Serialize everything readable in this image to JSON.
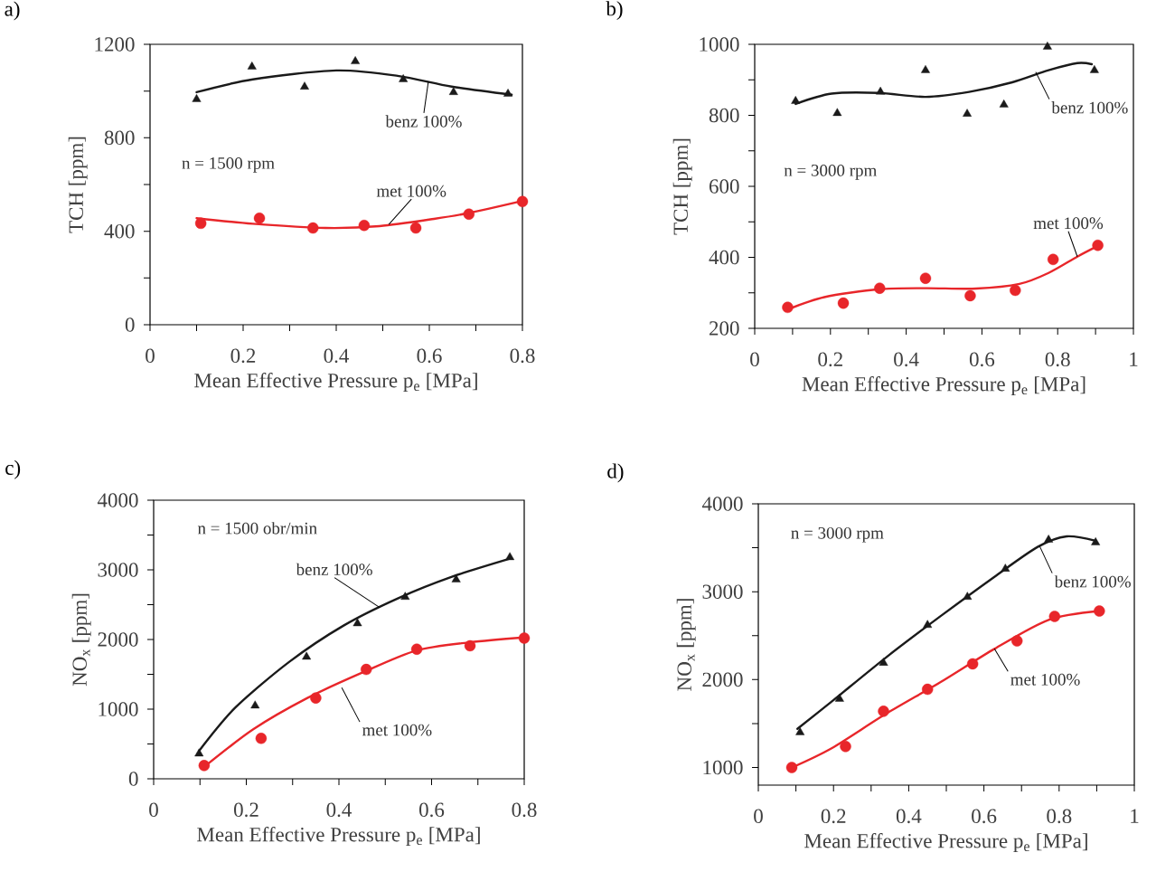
{
  "chart_data": [
    {
      "type": "scatter",
      "title": "a)",
      "xlabel": "Mean Effective Pressure p$_{e}$ [MPa]",
      "ylabel": "TCH [ppm]",
      "xlim": [
        0,
        0.8
      ],
      "ylim": [
        0,
        1200
      ],
      "xticks": [
        0,
        {
          "value": 0.1,
          "label": null
        },
        0.2,
        {
          "value": 0.3,
          "label": null
        },
        0.4,
        {
          "value": 0.5,
          "label": null
        },
        0.6,
        {
          "value": 0.7,
          "label": null
        },
        0.8
      ],
      "yticks": [
        0,
        {
          "value": 200,
          "label": null
        },
        400,
        {
          "value": 600,
          "label": null
        },
        800,
        {
          "value": 1000,
          "label": null
        },
        1200
      ],
      "annotations": [
        {
          "text": "benz 100%",
          "x": 0.598,
          "y": 1042
        },
        {
          "text": "met 100%",
          "x": 0.513,
          "y": 429
        },
        "n = 1500 rpm"
      ],
      "series": [
        {
          "type": "scatter",
          "marker": "triangle",
          "color": "#1a1a1a",
          "x": [
            0.1,
            0.219,
            0.332,
            0.441,
            0.544,
            0.652,
            0.769
          ],
          "values": [
            965,
            1104,
            1018,
            1127,
            1050,
            995,
            988
          ]
        },
        {
          "type": "scatter",
          "marker": "circle",
          "color": "#e8262a",
          "x": [
            0.109,
            0.235,
            0.35,
            0.46,
            0.571,
            0.685,
            0.8
          ],
          "values": [
            434,
            456,
            414,
            425,
            414,
            473,
            527
          ]
        },
        {
          "type": "line",
          "marker": "none",
          "color": "#1a1a1a",
          "x": [
            0.1,
            0.221,
            0.4,
            0.532,
            0.648,
            0.777
          ],
          "values": [
            995,
            1050,
            1088,
            1065,
            1019,
            984
          ]
        },
        {
          "type": "line",
          "marker": "none",
          "color": "#e8262a",
          "x": [
            0.1,
            0.221,
            0.377,
            0.493,
            0.61,
            0.687,
            0.8
          ],
          "values": [
            456,
            432,
            414,
            422,
            453,
            479,
            530
          ]
        }
      ]
    },
    {
      "type": "scatter",
      "title": "b)",
      "xlabel": "Mean Effective Pressure p$_{e}$ [MPa]",
      "ylabel": "TCH [ppm]",
      "xlim": [
        0,
        1
      ],
      "ylim": [
        200,
        1000
      ],
      "xticks": [
        0,
        {
          "value": 0.1,
          "label": null
        },
        0.2,
        {
          "value": 0.3,
          "label": null
        },
        0.4,
        {
          "value": 0.5,
          "label": null
        },
        0.6,
        {
          "value": 0.7,
          "label": null
        },
        0.8,
        {
          "value": 0.9,
          "label": null
        },
        1
      ],
      "yticks": [
        200,
        {
          "value": 300,
          "label": null
        },
        400,
        {
          "value": 500,
          "label": null
        },
        600,
        {
          "value": 700,
          "label": null
        },
        800,
        {
          "value": 900,
          "label": null
        },
        1000
      ],
      "annotations": [
        {
          "text": "benz 100%",
          "x": 0.742,
          "y": 922
        },
        {
          "text": "met 100%",
          "x": 0.852,
          "y": 402
        },
        "n = 3000 rpm"
      ],
      "series": [
        {
          "type": "scatter",
          "marker": "triangle",
          "color": "#1a1a1a",
          "x": [
            0.108,
            0.218,
            0.332,
            0.451,
            0.561,
            0.658,
            0.773,
            0.897
          ],
          "values": [
            840,
            806,
            866,
            927,
            804,
            830,
            993,
            927
          ]
        },
        {
          "type": "scatter",
          "marker": "circle",
          "color": "#e8262a",
          "x": [
            0.087,
            0.234,
            0.33,
            0.451,
            0.569,
            0.688,
            0.788,
            0.906
          ],
          "values": [
            259,
            271,
            313,
            341,
            292,
            307,
            394,
            434
          ]
        },
        {
          "type": "line",
          "marker": "none",
          "color": "#1a1a1a",
          "x": [
            0.108,
            0.203,
            0.327,
            0.451,
            0.566,
            0.68,
            0.776,
            0.852,
            0.89
          ],
          "values": [
            832,
            861,
            863,
            852,
            866,
            893,
            927,
            947,
            944
          ]
        },
        {
          "type": "line",
          "marker": "none",
          "color": "#e8262a",
          "x": [
            0.089,
            0.184,
            0.327,
            0.451,
            0.585,
            0.699,
            0.776,
            0.852,
            0.906
          ],
          "values": [
            254,
            288,
            310,
            313,
            312,
            325,
            356,
            402,
            432
          ]
        }
      ]
    },
    {
      "type": "scatter",
      "title": "c)",
      "xlabel": "Mean Effective Pressure p$_{e}$ [MPa]",
      "ylabel": "NO$_{x}$ [ppm]",
      "xlim": [
        0,
        0.8
      ],
      "ylim": [
        0,
        4000
      ],
      "xticks": [
        0,
        {
          "value": 0.1,
          "label": null
        },
        0.2,
        {
          "value": 0.3,
          "label": null
        },
        0.4,
        {
          "value": 0.5,
          "label": null
        },
        0.6,
        {
          "value": 0.7,
          "label": null
        },
        0.8
      ],
      "yticks": [
        0,
        {
          "value": 500,
          "label": null
        },
        1000,
        {
          "value": 1500,
          "label": null
        },
        2000,
        {
          "value": 2500,
          "label": null
        },
        3000,
        {
          "value": 3500,
          "label": null
        },
        4000
      ],
      "annotations": [
        {
          "text": "benz 100%",
          "x": 0.488,
          "y": 2460
        },
        {
          "text": "met 100%",
          "x": 0.406,
          "y": 1310
        },
        "n = 1500 obr/min"
      ],
      "series": [
        {
          "type": "scatter",
          "marker": "triangle",
          "color": "#1a1a1a",
          "x": [
            0.098,
            0.219,
            0.33,
            0.44,
            0.543,
            0.653,
            0.769
          ],
          "values": [
            360,
            1050,
            1750,
            2230,
            2610,
            2860,
            3180
          ]
        },
        {
          "type": "scatter",
          "marker": "circle",
          "color": "#e8262a",
          "x": [
            0.109,
            0.232,
            0.35,
            0.459,
            0.568,
            0.683,
            0.8
          ],
          "values": [
            190,
            580,
            1160,
            1570,
            1860,
            1910,
            2020
          ]
        },
        {
          "type": "line",
          "marker": "none",
          "color": "#1a1a1a",
          "x": [
            0.098,
            0.176,
            0.293,
            0.41,
            0.527,
            0.644,
            0.769
          ],
          "values": [
            400,
            1020,
            1680,
            2200,
            2590,
            2900,
            3160
          ]
        },
        {
          "type": "line",
          "marker": "none",
          "color": "#e8262a",
          "x": [
            0.109,
            0.215,
            0.332,
            0.449,
            0.566,
            0.683,
            0.8
          ],
          "values": [
            170,
            710,
            1160,
            1520,
            1840,
            1960,
            2030
          ]
        }
      ]
    },
    {
      "type": "scatter",
      "title": "d)",
      "xlabel": "Mean Effective Pressure p$_{e}$ [MPa]",
      "ylabel": "NO$_{x}$ [ppm]",
      "xlim": [
        0,
        1
      ],
      "ylim": [
        800,
        4000
      ],
      "xticks": [
        0,
        {
          "value": 0.1,
          "label": null
        },
        0.2,
        {
          "value": 0.3,
          "label": null
        },
        0.4,
        {
          "value": 0.5,
          "label": null
        },
        0.6,
        {
          "value": 0.7,
          "label": null
        },
        0.8,
        {
          "value": 0.9,
          "label": null
        },
        1
      ],
      "yticks": [
        1000,
        {
          "value": 1500,
          "label": null
        },
        2000,
        {
          "value": 2500,
          "label": null
        },
        3000,
        {
          "value": 3500,
          "label": null
        },
        4000
      ],
      "annotations": [
        {
          "text": "benz 100%",
          "x": 0.748,
          "y": 3520
        },
        {
          "text": "met 100%",
          "x": 0.628,
          "y": 2350
        },
        "n = 3000 rpm"
      ],
      "series": [
        {
          "type": "scatter",
          "marker": "triangle",
          "color": "#1a1a1a",
          "x": [
            0.111,
            0.216,
            0.333,
            0.45,
            0.556,
            0.657,
            0.772,
            0.897
          ],
          "values": [
            1400,
            1780,
            2190,
            2620,
            2940,
            3260,
            3590,
            3560
          ]
        },
        {
          "type": "scatter",
          "marker": "circle",
          "color": "#e8262a",
          "x": [
            0.089,
            0.232,
            0.333,
            0.45,
            0.57,
            0.688,
            0.788,
            0.907
          ],
          "values": [
            1000,
            1240,
            1640,
            1890,
            2180,
            2440,
            2720,
            2780
          ]
        },
        {
          "type": "line",
          "marker": "none",
          "color": "#1a1a1a",
          "x": [
            0.104,
            0.195,
            0.339,
            0.484,
            0.628,
            0.743,
            0.82,
            0.897
          ],
          "values": [
            1440,
            1750,
            2250,
            2720,
            3170,
            3510,
            3630,
            3580
          ]
        },
        {
          "type": "line",
          "marker": "none",
          "color": "#e8262a",
          "x": [
            0.089,
            0.195,
            0.339,
            0.484,
            0.628,
            0.772,
            0.907
          ],
          "values": [
            1000,
            1220,
            1610,
            1970,
            2350,
            2680,
            2780
          ]
        }
      ]
    }
  ]
}
